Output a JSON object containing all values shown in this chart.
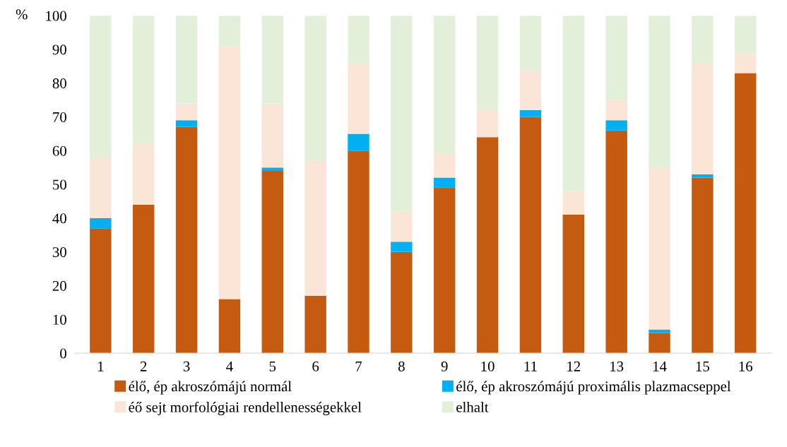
{
  "chart_data": {
    "type": "bar",
    "stacked": true,
    "ylabel": "%",
    "categories": [
      "1",
      "2",
      "3",
      "4",
      "5",
      "6",
      "7",
      "8",
      "9",
      "10",
      "11",
      "12",
      "13",
      "14",
      "15",
      "16"
    ],
    "series": [
      {
        "name": "élő, ép akroszómájú normál",
        "color": "#c55a11",
        "values": [
          37,
          44,
          67,
          16,
          54,
          17,
          60,
          30,
          49,
          64,
          70,
          41,
          66,
          6,
          52,
          83
        ]
      },
      {
        "name": "élő, ép akroszómájú proximális plazmacseppel",
        "color": "#00b0f0",
        "values": [
          3,
          0,
          2,
          0,
          1,
          0,
          5,
          3,
          3,
          0,
          2,
          0,
          3,
          1,
          1,
          0
        ]
      },
      {
        "name": "éő sejt morfológiai rendellenességekkel",
        "color": "#fbe5d6",
        "values": [
          18,
          18,
          5,
          75,
          19,
          40,
          21,
          9,
          7,
          8,
          12,
          7,
          6,
          48,
          33,
          6
        ]
      },
      {
        "name": "elhalt",
        "color": "#e2f0d9",
        "values": [
          42,
          38,
          26,
          9,
          26,
          43,
          14,
          58,
          41,
          28,
          16,
          52,
          25,
          45,
          14,
          11
        ]
      }
    ],
    "ylim": [
      0,
      100
    ],
    "yticks": [
      0,
      10,
      20,
      30,
      40,
      50,
      60,
      70,
      80,
      90,
      100
    ],
    "grid": false,
    "legend": "bottom"
  }
}
